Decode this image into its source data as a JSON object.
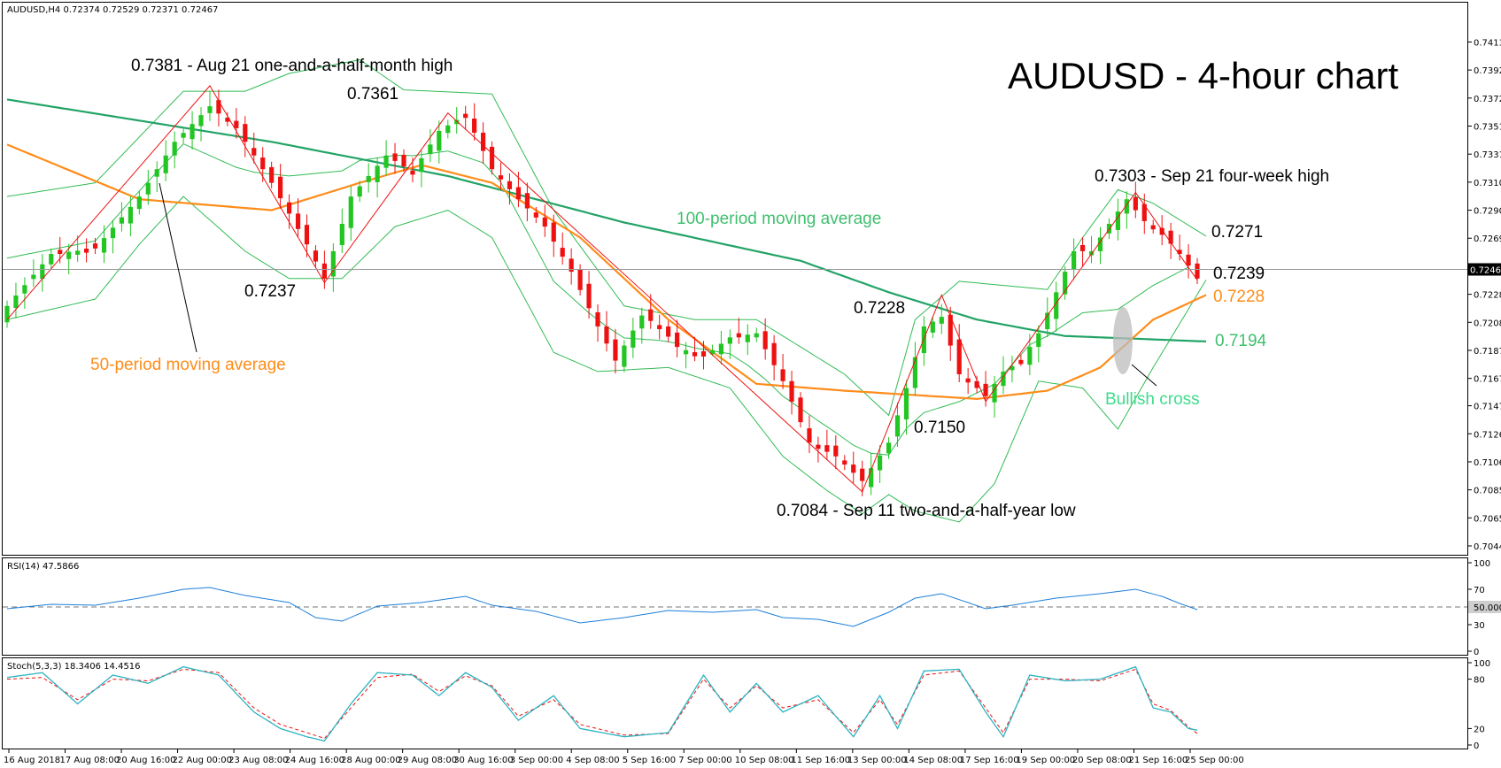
{
  "window": {
    "main_header": "AUDUSD,H4  0.72374 0.72529 0.72371 0.72467",
    "rsi_header": "RSI(14) 47.5866",
    "stoch_header": "Stoch(5,3,3) 18.3406 14.4516"
  },
  "title": "AUDUSD - 4-hour chart",
  "colors": {
    "bull": "#22c522",
    "bear": "#ee1111",
    "ma50": "#ff8c1a",
    "ma100": "#22a366",
    "bollinger": "#33bb55",
    "zigzag": "#ee1111",
    "rsi": "#1e7fd8",
    "stoch_main": "#2bb3c0",
    "stoch_signal": "#ee1111",
    "annotation_green": "#3fbf6e"
  },
  "annotations": {
    "high_aug21": "0.7381 - Aug 21 one-and-a-half-month high",
    "high_0_7361": "0.7361",
    "low_0_7237": "0.7237",
    "ma100_label": "100-period moving average",
    "ma50_label": "50-period moving average",
    "peak_0_7228": "0.7228",
    "low_0_7150": "0.7150",
    "low_sep11": "0.7084 - Sep 11 two-and-a-half-year low",
    "high_sep21": "0.7303 - Sep 21 four-week high",
    "bb_upper_value": "0.7271",
    "close_value": "0.7239",
    "ma50_value": "0.7228",
    "ma100_value": "0.7194",
    "bullish_cross": "Bullish cross"
  },
  "chart_data": [
    {
      "type": "candlestick",
      "title": "AUDUSD - 4-hour chart",
      "ylim": [
        0.70445,
        0.7423
      ],
      "y_ticks": [
        "0.74130",
        "0.73925",
        "0.73720",
        "0.73515",
        "0.73310",
        "0.73105",
        "0.72900",
        "0.72695",
        "0.72490",
        "0.72285",
        "0.72080",
        "0.71875",
        "0.71670",
        "0.71470",
        "0.71265",
        "0.71060",
        "0.70855",
        "0.70650",
        "0.70445"
      ],
      "current_price": "0.72467",
      "x_ticks": [
        "16 Aug 2018",
        "17 Aug 08:00",
        "20 Aug 16:00",
        "22 Aug 00:00",
        "23 Aug 08:00",
        "24 Aug 16:00",
        "28 Aug 00:00",
        "29 Aug 08:00",
        "30 Aug 16:00",
        "3 Sep 00:00",
        "4 Sep 08:00",
        "5 Sep 16:00",
        "7 Sep 00:00",
        "10 Sep 08:00",
        "11 Sep 16:00",
        "13 Sep 00:00",
        "14 Sep 08:00",
        "17 Sep 16:00",
        "19 Sep 00:00",
        "20 Sep 08:00",
        "21 Sep 16:00",
        "25 Sep 00:00"
      ],
      "close_anchors": [
        [
          0,
          0.722
        ],
        [
          5,
          0.7258
        ],
        [
          10,
          0.7262
        ],
        [
          15,
          0.73
        ],
        [
          19,
          0.734
        ],
        [
          23,
          0.7366
        ],
        [
          26,
          0.735
        ],
        [
          30,
          0.731
        ],
        [
          34,
          0.7265
        ],
        [
          36,
          0.724
        ],
        [
          39,
          0.73
        ],
        [
          43,
          0.733
        ],
        [
          46,
          0.7318
        ],
        [
          49,
          0.7348
        ],
        [
          52,
          0.736
        ],
        [
          55,
          0.732
        ],
        [
          58,
          0.7298
        ],
        [
          61,
          0.7278
        ],
        [
          64,
          0.7245
        ],
        [
          67,
          0.7205
        ],
        [
          69,
          0.718
        ],
        [
          72,
          0.7213
        ],
        [
          74,
          0.7205
        ],
        [
          76,
          0.719
        ],
        [
          79,
          0.7183
        ],
        [
          82,
          0.7197
        ],
        [
          85,
          0.72
        ],
        [
          88,
          0.7165
        ],
        [
          91,
          0.712
        ],
        [
          94,
          0.711
        ],
        [
          97,
          0.7092
        ],
        [
          100,
          0.712
        ],
        [
          102,
          0.716
        ],
        [
          104,
          0.7205
        ],
        [
          106,
          0.7212
        ],
        [
          108,
          0.717
        ],
        [
          110,
          0.716
        ],
        [
          111,
          0.7154
        ],
        [
          113,
          0.7172
        ],
        [
          115,
          0.718
        ],
        [
          117,
          0.72
        ],
        [
          119,
          0.723
        ],
        [
          121,
          0.726
        ],
        [
          123,
          0.726
        ],
        [
          125,
          0.728
        ],
        [
          127,
          0.7298
        ],
        [
          129,
          0.7282
        ],
        [
          131,
          0.7272
        ],
        [
          133,
          0.7259
        ],
        [
          135,
          0.724
        ]
      ],
      "series": [
        {
          "name": "100-period moving average",
          "values_at": [
            [
              0,
              0.7371
            ],
            [
              30,
              0.734
            ],
            [
              50,
              0.7315
            ],
            [
              70,
              0.7281
            ],
            [
              90,
              0.7253
            ],
            [
              100,
              0.723
            ],
            [
              110,
              0.721
            ],
            [
              120,
              0.7198
            ],
            [
              136,
              0.7194
            ]
          ]
        },
        {
          "name": "50-period moving average",
          "values_at": [
            [
              0,
              0.7338
            ],
            [
              15,
              0.7298
            ],
            [
              30,
              0.729
            ],
            [
              40,
              0.731
            ],
            [
              47,
              0.7323
            ],
            [
              55,
              0.731
            ],
            [
              65,
              0.727
            ],
            [
              75,
              0.721
            ],
            [
              85,
              0.7163
            ],
            [
              95,
              0.7158
            ],
            [
              110,
              0.7152
            ],
            [
              118,
              0.7158
            ],
            [
              124,
              0.7175
            ],
            [
              130,
              0.721
            ],
            [
              136,
              0.7228
            ]
          ]
        }
      ],
      "bollinger": {
        "upper_at": [
          [
            0,
            0.73
          ],
          [
            10,
            0.731
          ],
          [
            20,
            0.7377
          ],
          [
            27,
            0.7377
          ],
          [
            32,
            0.739
          ],
          [
            40,
            0.74
          ],
          [
            45,
            0.7378
          ],
          [
            55,
            0.7375
          ],
          [
            62,
            0.729
          ],
          [
            70,
            0.722
          ],
          [
            78,
            0.721
          ],
          [
            85,
            0.721
          ],
          [
            95,
            0.717
          ],
          [
            100,
            0.714
          ],
          [
            103,
            0.721
          ],
          [
            108,
            0.7238
          ],
          [
            113,
            0.7235
          ],
          [
            118,
            0.7232
          ],
          [
            122,
            0.727
          ],
          [
            126,
            0.7305
          ],
          [
            130,
            0.7295
          ],
          [
            136,
            0.7271
          ]
        ],
        "lower_at": [
          [
            0,
            0.721
          ],
          [
            10,
            0.7225
          ],
          [
            15,
            0.7265
          ],
          [
            20,
            0.73
          ],
          [
            27,
            0.726
          ],
          [
            32,
            0.724
          ],
          [
            38,
            0.724
          ],
          [
            44,
            0.7278
          ],
          [
            50,
            0.729
          ],
          [
            55,
            0.727
          ],
          [
            62,
            0.7186
          ],
          [
            67,
            0.7172
          ],
          [
            75,
            0.7175
          ],
          [
            82,
            0.716
          ],
          [
            88,
            0.711
          ],
          [
            93,
            0.7085
          ],
          [
            97,
            0.7068
          ],
          [
            100,
            0.7082
          ],
          [
            103,
            0.707
          ],
          [
            108,
            0.7062
          ],
          [
            112,
            0.709
          ],
          [
            117,
            0.7165
          ],
          [
            122,
            0.716
          ],
          [
            126,
            0.713
          ],
          [
            130,
            0.7175
          ],
          [
            136,
            0.7239
          ]
        ]
      },
      "zigzag": [
        [
          0,
          0.721
        ],
        [
          23,
          0.7381
        ],
        [
          36,
          0.7237
        ],
        [
          50,
          0.7361
        ],
        [
          97,
          0.7084
        ],
        [
          106,
          0.7228
        ],
        [
          111,
          0.715
        ],
        [
          128,
          0.7303
        ],
        [
          135,
          0.7239
        ]
      ],
      "bullish_cross_at": [
        128,
        0.7194
      ]
    },
    {
      "type": "line",
      "name": "RSI(14)",
      "value": "47.5866",
      "ylim": [
        0,
        100
      ],
      "y_ticks": [
        "100",
        "70",
        "50.0000",
        "30",
        "0"
      ],
      "reference_level": 50,
      "values_at": [
        [
          0,
          48
        ],
        [
          5,
          53
        ],
        [
          10,
          52
        ],
        [
          15,
          60
        ],
        [
          20,
          70
        ],
        [
          23,
          72
        ],
        [
          27,
          63
        ],
        [
          32,
          55
        ],
        [
          35,
          38
        ],
        [
          38,
          34
        ],
        [
          42,
          51
        ],
        [
          47,
          55
        ],
        [
          52,
          62
        ],
        [
          55,
          52
        ],
        [
          60,
          45
        ],
        [
          65,
          32
        ],
        [
          70,
          38
        ],
        [
          75,
          46
        ],
        [
          80,
          44
        ],
        [
          85,
          47
        ],
        [
          88,
          38
        ],
        [
          92,
          36
        ],
        [
          96,
          28
        ],
        [
          100,
          44
        ],
        [
          103,
          60
        ],
        [
          106,
          65
        ],
        [
          109,
          55
        ],
        [
          111,
          48
        ],
        [
          114,
          52
        ],
        [
          119,
          60
        ],
        [
          124,
          65
        ],
        [
          128,
          70
        ],
        [
          131,
          62
        ],
        [
          133,
          54
        ],
        [
          135,
          47
        ]
      ]
    },
    {
      "type": "line",
      "name": "Stoch(5,3,3)",
      "main": "18.3406",
      "signal": "14.4516",
      "ylim": [
        0,
        100
      ],
      "y_ticks": [
        "100",
        "80",
        "20",
        "0"
      ],
      "main_at": [
        [
          0,
          82
        ],
        [
          4,
          88
        ],
        [
          8,
          50
        ],
        [
          12,
          85
        ],
        [
          16,
          75
        ],
        [
          20,
          95
        ],
        [
          24,
          85
        ],
        [
          28,
          40
        ],
        [
          31,
          20
        ],
        [
          34,
          10
        ],
        [
          36,
          5
        ],
        [
          39,
          50
        ],
        [
          42,
          88
        ],
        [
          46,
          85
        ],
        [
          49,
          60
        ],
        [
          52,
          88
        ],
        [
          55,
          70
        ],
        [
          58,
          30
        ],
        [
          62,
          60
        ],
        [
          65,
          20
        ],
        [
          70,
          10
        ],
        [
          75,
          15
        ],
        [
          79,
          85
        ],
        [
          82,
          40
        ],
        [
          85,
          75
        ],
        [
          88,
          40
        ],
        [
          92,
          60
        ],
        [
          96,
          10
        ],
        [
          99,
          60
        ],
        [
          101,
          20
        ],
        [
          104,
          90
        ],
        [
          108,
          92
        ],
        [
          111,
          40
        ],
        [
          113,
          10
        ],
        [
          116,
          85
        ],
        [
          120,
          78
        ],
        [
          124,
          80
        ],
        [
          128,
          95
        ],
        [
          130,
          45
        ],
        [
          132,
          40
        ],
        [
          134,
          20
        ],
        [
          135,
          18
        ]
      ],
      "signal_at": [
        [
          0,
          80
        ],
        [
          4,
          82
        ],
        [
          8,
          55
        ],
        [
          12,
          80
        ],
        [
          16,
          78
        ],
        [
          20,
          92
        ],
        [
          24,
          88
        ],
        [
          28,
          45
        ],
        [
          31,
          25
        ],
        [
          34,
          15
        ],
        [
          36,
          8
        ],
        [
          39,
          45
        ],
        [
          42,
          82
        ],
        [
          46,
          86
        ],
        [
          49,
          65
        ],
        [
          52,
          84
        ],
        [
          55,
          72
        ],
        [
          58,
          35
        ],
        [
          62,
          55
        ],
        [
          65,
          25
        ],
        [
          70,
          12
        ],
        [
          75,
          14
        ],
        [
          79,
          80
        ],
        [
          82,
          45
        ],
        [
          85,
          72
        ],
        [
          88,
          45
        ],
        [
          92,
          55
        ],
        [
          96,
          15
        ],
        [
          99,
          55
        ],
        [
          101,
          25
        ],
        [
          104,
          85
        ],
        [
          108,
          90
        ],
        [
          111,
          45
        ],
        [
          113,
          15
        ],
        [
          116,
          80
        ],
        [
          120,
          80
        ],
        [
          124,
          78
        ],
        [
          128,
          92
        ],
        [
          130,
          50
        ],
        [
          132,
          42
        ],
        [
          134,
          22
        ],
        [
          135,
          14
        ]
      ]
    }
  ]
}
